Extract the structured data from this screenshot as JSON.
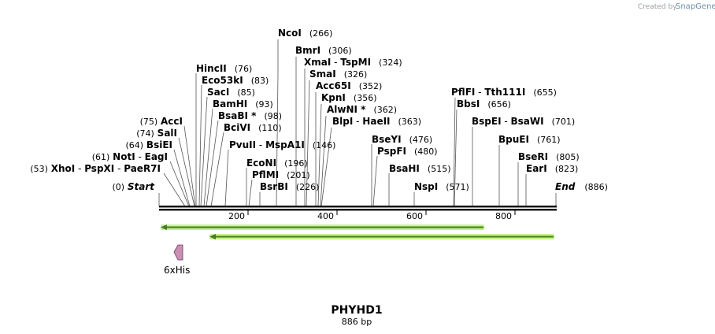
{
  "credit": {
    "prefix": "Created by",
    "brand": "SnapGene"
  },
  "title": "PHYHD1",
  "length_label": "886 bp",
  "ruler": {
    "ticks": [
      "200",
      "400",
      "600",
      "800"
    ]
  },
  "map_data": {
    "length": 886,
    "start": {
      "label": "Start",
      "pos": "(0)"
    },
    "end": {
      "label": "End",
      "pos": "(886)"
    },
    "sites_left": [
      {
        "names": [
          "AccI"
        ],
        "pos": "(75)",
        "bp": 75
      },
      {
        "names": [
          "SalI"
        ],
        "pos": "(74)",
        "bp": 74
      },
      {
        "names": [
          "BsiEI"
        ],
        "pos": "(64)",
        "bp": 64
      },
      {
        "names": [
          "NotI",
          "EagI"
        ],
        "pos": "(61)",
        "bp": 61
      },
      {
        "names": [
          "XhoI",
          "PspXI",
          "PaeR7I"
        ],
        "pos": "(53)",
        "bp": 53
      }
    ],
    "sites_right": [
      {
        "names": [
          "NcoI"
        ],
        "pos": "(266)",
        "bp": 266
      },
      {
        "names": [
          "BmrI"
        ],
        "pos": "(306)",
        "bp": 306
      },
      {
        "names": [
          "XmaI",
          "TspMI"
        ],
        "pos": "(324)",
        "bp": 324
      },
      {
        "names": [
          "SmaI"
        ],
        "pos": "(326)",
        "bp": 326
      },
      {
        "names": [
          "Acc65I"
        ],
        "pos": "(352)",
        "bp": 352
      },
      {
        "names": [
          "KpnI"
        ],
        "pos": "(356)",
        "bp": 356
      },
      {
        "names": [
          "AlwNI *"
        ],
        "pos": "(362)",
        "bp": 362
      },
      {
        "names": [
          "BlpI",
          "HaeII"
        ],
        "pos": "(363)",
        "bp": 363
      },
      {
        "names": [
          "HincII"
        ],
        "pos": "(76)",
        "bp": 76
      },
      {
        "names": [
          "Eco53kI"
        ],
        "pos": "(83)",
        "bp": 83
      },
      {
        "names": [
          "SacI"
        ],
        "pos": "(85)",
        "bp": 85
      },
      {
        "names": [
          "BamHI"
        ],
        "pos": "(93)",
        "bp": 93
      },
      {
        "names": [
          "BsaBI *"
        ],
        "pos": "(98)",
        "bp": 98
      },
      {
        "names": [
          "BciVI"
        ],
        "pos": "(110)",
        "bp": 110
      },
      {
        "names": [
          "PvuII",
          "MspA1I"
        ],
        "pos": "(146)",
        "bp": 146
      },
      {
        "names": [
          "EcoNI"
        ],
        "pos": "(196)",
        "bp": 196
      },
      {
        "names": [
          "PflMI"
        ],
        "pos": "(201)",
        "bp": 201
      },
      {
        "names": [
          "BsrBI"
        ],
        "pos": "(226)",
        "bp": 226
      },
      {
        "names": [
          "BseYI"
        ],
        "pos": "(476)",
        "bp": 476
      },
      {
        "names": [
          "PspFI"
        ],
        "pos": "(480)",
        "bp": 480
      },
      {
        "names": [
          "BsaHI"
        ],
        "pos": "(515)",
        "bp": 515
      },
      {
        "names": [
          "NspI"
        ],
        "pos": "(571)",
        "bp": 571
      },
      {
        "names": [
          "PflFI",
          "Tth111I"
        ],
        "pos": "(655)",
        "bp": 655
      },
      {
        "names": [
          "BbsI"
        ],
        "pos": "(656)",
        "bp": 656
      },
      {
        "names": [
          "BspEI",
          "BsaWI"
        ],
        "pos": "(701)",
        "bp": 701
      },
      {
        "names": [
          "BpuEI"
        ],
        "pos": "(761)",
        "bp": 761
      },
      {
        "names": [
          "BseRI"
        ],
        "pos": "(805)",
        "bp": 805
      },
      {
        "names": [
          "EarI"
        ],
        "pos": "(823)",
        "bp": 823
      }
    ],
    "features": [
      {
        "label": "6xHis",
        "color": "#c891b4"
      }
    ],
    "primer_color": "#4a7b1f",
    "primer_glow": "#b8f07a"
  }
}
